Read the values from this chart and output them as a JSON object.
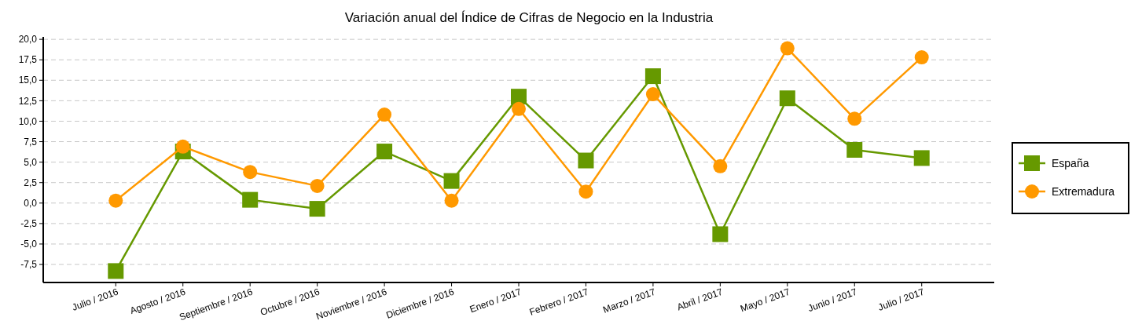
{
  "chart_data": {
    "type": "line",
    "title": "Variación anual del Índice de Cifras de Negocio en la Industria",
    "categories": [
      "Julio / 2016",
      "Agosto / 2016",
      "Septiembre / 2016",
      "Octubre / 2016",
      "Noviembre / 2016",
      "Diciembre / 2016",
      "Enero / 2017",
      "Febrero / 2017",
      "Marzo / 2017",
      "Abril / 2017",
      "Mayo / 2017",
      "Junio / 2017",
      "Julio / 2017"
    ],
    "series": [
      {
        "name": "España",
        "color": "#669900",
        "marker": "square",
        "values": [
          -8.3,
          6.3,
          0.4,
          -0.7,
          6.3,
          2.7,
          13.0,
          5.2,
          15.5,
          -3.8,
          12.8,
          6.5,
          5.5
        ]
      },
      {
        "name": "Extremadura",
        "color": "#ff9900",
        "marker": "circle",
        "values": [
          0.3,
          6.9,
          3.8,
          2.1,
          10.8,
          0.3,
          11.5,
          1.4,
          13.3,
          4.5,
          18.9,
          10.3,
          17.8
        ]
      }
    ],
    "ylim": [
      -9.7,
      20.3
    ],
    "yticks": [
      {
        "value": -7.5,
        "label": "-7,5"
      },
      {
        "value": -5,
        "label": "-5,0"
      },
      {
        "value": -2.5,
        "label": "-2,5"
      },
      {
        "value": 0,
        "label": "0,0"
      },
      {
        "value": 2.5,
        "label": "2,5"
      },
      {
        "value": 5,
        "label": "5,0"
      },
      {
        "value": 7.5,
        "label": "7,5"
      },
      {
        "value": 10,
        "label": "10,0"
      },
      {
        "value": 12.5,
        "label": "12,5"
      },
      {
        "value": 15,
        "label": "15,0"
      },
      {
        "value": 17.5,
        "label": "17,5"
      },
      {
        "value": 20,
        "label": "20,0"
      }
    ],
    "grid": "y",
    "legend": "right",
    "line_style": "solid"
  }
}
